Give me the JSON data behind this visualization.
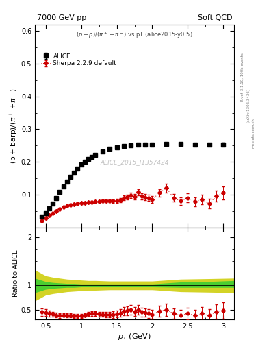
{
  "title_left": "7000 GeV pp",
  "title_right": "Soft QCD",
  "ylabel_main": "(p + barp)/(π⁺+π⁻)",
  "ylabel_ratio": "Ratio to ALICE",
  "xlabel": "p_{T} (GeV)",
  "annotation_title": "(̅p+p)/(π⁺+π⁻) vs pT (alice2015-y0.5)",
  "watermark": "ALICE_2015_I1357424",
  "rivet_text": "Rivet 3.1.10, 100k events",
  "arxiv_text": "[arXiv:1306.3436]",
  "mcplots_text": "mcplots.cern.ch",
  "alice_pt": [
    0.45,
    0.5,
    0.55,
    0.6,
    0.65,
    0.7,
    0.75,
    0.8,
    0.85,
    0.9,
    0.95,
    1.0,
    1.05,
    1.1,
    1.15,
    1.2,
    1.3,
    1.4,
    1.5,
    1.6,
    1.7,
    1.8,
    1.9,
    2.0,
    2.2,
    2.4,
    2.6,
    2.8,
    3.0
  ],
  "alice_y": [
    0.032,
    0.043,
    0.058,
    0.073,
    0.09,
    0.108,
    0.124,
    0.14,
    0.155,
    0.167,
    0.18,
    0.192,
    0.2,
    0.208,
    0.215,
    0.222,
    0.232,
    0.24,
    0.245,
    0.248,
    0.25,
    0.252,
    0.253,
    0.253,
    0.254,
    0.255,
    0.253,
    0.253,
    0.253
  ],
  "alice_yerr": [
    0.003,
    0.003,
    0.003,
    0.003,
    0.003,
    0.003,
    0.003,
    0.003,
    0.003,
    0.003,
    0.003,
    0.003,
    0.003,
    0.003,
    0.003,
    0.003,
    0.003,
    0.003,
    0.003,
    0.003,
    0.003,
    0.003,
    0.003,
    0.003,
    0.004,
    0.004,
    0.004,
    0.004,
    0.005
  ],
  "sherpa_pt": [
    0.45,
    0.5,
    0.55,
    0.6,
    0.65,
    0.7,
    0.75,
    0.8,
    0.85,
    0.9,
    0.95,
    1.0,
    1.05,
    1.1,
    1.15,
    1.2,
    1.25,
    1.3,
    1.35,
    1.4,
    1.45,
    1.5,
    1.55,
    1.6,
    1.65,
    1.7,
    1.75,
    1.8,
    1.85,
    1.9,
    1.95,
    2.0,
    2.1,
    2.2,
    2.3,
    2.4,
    2.5,
    2.6,
    2.7,
    2.8,
    2.9,
    3.0
  ],
  "sherpa_y": [
    0.02,
    0.029,
    0.036,
    0.043,
    0.05,
    0.056,
    0.062,
    0.066,
    0.069,
    0.071,
    0.073,
    0.074,
    0.075,
    0.076,
    0.077,
    0.078,
    0.079,
    0.08,
    0.08,
    0.081,
    0.08,
    0.081,
    0.083,
    0.09,
    0.093,
    0.098,
    0.094,
    0.107,
    0.095,
    0.092,
    0.09,
    0.085,
    0.105,
    0.12,
    0.09,
    0.08,
    0.09,
    0.078,
    0.085,
    0.072,
    0.095,
    0.105
  ],
  "sherpa_yerr": [
    0.004,
    0.004,
    0.003,
    0.003,
    0.003,
    0.003,
    0.003,
    0.003,
    0.003,
    0.003,
    0.003,
    0.003,
    0.003,
    0.003,
    0.003,
    0.003,
    0.003,
    0.004,
    0.004,
    0.005,
    0.005,
    0.006,
    0.006,
    0.007,
    0.007,
    0.008,
    0.008,
    0.009,
    0.009,
    0.009,
    0.009,
    0.01,
    0.012,
    0.014,
    0.012,
    0.012,
    0.014,
    0.014,
    0.015,
    0.015,
    0.017,
    0.02
  ],
  "ratio_pt": [
    0.45,
    0.5,
    0.55,
    0.6,
    0.65,
    0.7,
    0.75,
    0.8,
    0.85,
    0.9,
    0.95,
    1.0,
    1.05,
    1.1,
    1.15,
    1.2,
    1.25,
    1.3,
    1.35,
    1.4,
    1.45,
    1.5,
    1.55,
    1.6,
    1.65,
    1.7,
    1.75,
    1.8,
    1.85,
    1.9,
    1.95,
    2.0,
    2.1,
    2.2,
    2.3,
    2.4,
    2.5,
    2.6,
    2.7,
    2.8,
    2.9,
    3.0
  ],
  "ratio_y": [
    0.45,
    0.44,
    0.42,
    0.41,
    0.39,
    0.38,
    0.39,
    0.38,
    0.38,
    0.37,
    0.37,
    0.37,
    0.39,
    0.41,
    0.42,
    0.42,
    0.41,
    0.4,
    0.4,
    0.4,
    0.4,
    0.41,
    0.43,
    0.47,
    0.48,
    0.5,
    0.46,
    0.5,
    0.45,
    0.44,
    0.42,
    0.4,
    0.47,
    0.5,
    0.42,
    0.38,
    0.42,
    0.38,
    0.42,
    0.38,
    0.46,
    0.48
  ],
  "ratio_yerr": [
    0.08,
    0.07,
    0.06,
    0.05,
    0.05,
    0.05,
    0.04,
    0.04,
    0.04,
    0.04,
    0.04,
    0.04,
    0.04,
    0.04,
    0.05,
    0.05,
    0.05,
    0.05,
    0.06,
    0.06,
    0.07,
    0.07,
    0.08,
    0.09,
    0.09,
    0.1,
    0.09,
    0.1,
    0.09,
    0.09,
    0.09,
    0.09,
    0.11,
    0.13,
    0.11,
    0.11,
    0.12,
    0.12,
    0.13,
    0.13,
    0.15,
    0.17
  ],
  "band_pt": [
    0.35,
    0.5,
    0.6,
    0.7,
    0.8,
    0.9,
    1.0,
    1.1,
    1.2,
    1.4,
    1.6,
    1.8,
    2.0,
    2.4,
    2.8,
    3.15
  ],
  "band_green_lo": [
    0.85,
    0.92,
    0.94,
    0.95,
    0.96,
    0.96,
    0.97,
    0.97,
    0.97,
    0.97,
    0.97,
    0.97,
    0.97,
    0.96,
    0.96,
    0.96
  ],
  "band_green_hi": [
    1.15,
    1.08,
    1.06,
    1.05,
    1.04,
    1.04,
    1.03,
    1.03,
    1.03,
    1.03,
    1.03,
    1.03,
    1.03,
    1.07,
    1.08,
    1.1
  ],
  "band_yellow_lo": [
    0.68,
    0.8,
    0.83,
    0.85,
    0.87,
    0.88,
    0.89,
    0.9,
    0.9,
    0.91,
    0.91,
    0.91,
    0.91,
    0.87,
    0.86,
    0.85
  ],
  "band_yellow_hi": [
    1.32,
    1.2,
    1.17,
    1.15,
    1.13,
    1.12,
    1.11,
    1.1,
    1.1,
    1.09,
    1.09,
    1.09,
    1.09,
    1.13,
    1.14,
    1.15
  ],
  "xlim": [
    0.35,
    3.15
  ],
  "ylim_main": [
    0.0,
    0.62
  ],
  "ylim_ratio": [
    0.3,
    2.2
  ],
  "yticks_main": [
    0.0,
    0.1,
    0.2,
    0.3,
    0.4,
    0.5,
    0.6
  ],
  "yticks_ratio": [
    0.5,
    1.0,
    2.0
  ],
  "xticks": [
    0.5,
    1.0,
    1.5,
    2.0,
    2.5,
    3.0
  ],
  "bg_color": "#ffffff",
  "alice_color": "#000000",
  "sherpa_color": "#cc0000",
  "green_color": "#33cc33",
  "yellow_color": "#cccc00"
}
